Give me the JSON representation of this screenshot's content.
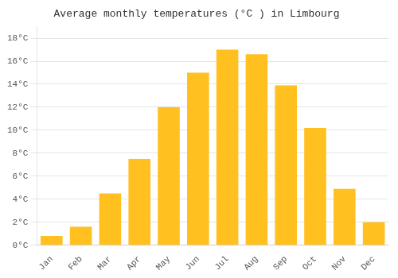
{
  "chart_data": {
    "type": "bar",
    "title": "Average monthly temperatures (°C ) in Limbourg",
    "categories": [
      "Jan",
      "Feb",
      "Mar",
      "Apr",
      "May",
      "Jun",
      "Jul",
      "Aug",
      "Sep",
      "Oct",
      "Nov",
      "Dec"
    ],
    "values": [
      0.8,
      1.6,
      4.5,
      7.5,
      12.0,
      15.0,
      17.0,
      16.6,
      13.9,
      10.2,
      4.9,
      2.0
    ],
    "color": "#FFC020",
    "ylim": [
      0,
      19
    ],
    "yticks": [
      {
        "value": 0,
        "label": "0°C"
      },
      {
        "value": 2,
        "label": "2°C"
      },
      {
        "value": 4,
        "label": "4°C"
      },
      {
        "value": 6,
        "label": "6°C"
      },
      {
        "value": 8,
        "label": "8°C"
      },
      {
        "value": 10,
        "label": "10°C"
      },
      {
        "value": 12,
        "label": "12°C"
      },
      {
        "value": 14,
        "label": "14°C"
      },
      {
        "value": 16,
        "label": "16°C"
      },
      {
        "value": 18,
        "label": "18°C"
      }
    ],
    "grid": true
  }
}
